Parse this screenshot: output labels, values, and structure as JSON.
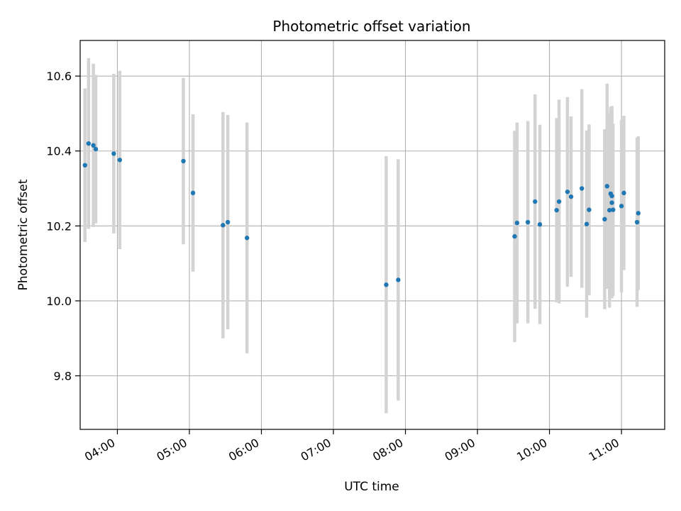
{
  "chart_data": {
    "type": "scatter",
    "title": "Photometric offset variation",
    "xlabel": "UTC time",
    "ylabel": "Photometric offset",
    "x_tick_labels": [
      "04:00",
      "05:00",
      "06:00",
      "07:00",
      "08:00",
      "09:00",
      "10:00",
      "11:00"
    ],
    "x_ticks": [
      "04:00",
      "05:00",
      "06:00",
      "07:00",
      "08:00",
      "09:00",
      "10:00",
      "11:00"
    ],
    "y_ticks": [
      9.8,
      10.0,
      10.2,
      10.4,
      10.6
    ],
    "y_tick_labels": [
      "9.8",
      "10.0",
      "10.2",
      "10.4",
      "10.6"
    ],
    "xlim": [
      "03:29",
      "11:36"
    ],
    "ylim": [
      9.657,
      10.695
    ],
    "grid": true,
    "marker_color": "#1f77b4",
    "errorbar_color": "#d3d3d3",
    "points": [
      {
        "x": "03:33",
        "y": 10.362,
        "err": 0.205
      },
      {
        "x": "03:36",
        "y": 10.42,
        "err": 0.228
      },
      {
        "x": "03:40",
        "y": 10.415,
        "err": 0.218
      },
      {
        "x": "03:42",
        "y": 10.405,
        "err": 0.198
      },
      {
        "x": "03:57",
        "y": 10.393,
        "err": 0.213
      },
      {
        "x": "04:02",
        "y": 10.376,
        "err": 0.238
      },
      {
        "x": "04:55",
        "y": 10.373,
        "err": 0.222
      },
      {
        "x": "05:03",
        "y": 10.288,
        "err": 0.21
      },
      {
        "x": "05:28",
        "y": 10.202,
        "err": 0.302
      },
      {
        "x": "05:32",
        "y": 10.21,
        "err": 0.286
      },
      {
        "x": "05:48",
        "y": 10.168,
        "err": 0.308
      },
      {
        "x": "07:44",
        "y": 10.043,
        "err": 0.343
      },
      {
        "x": "07:54",
        "y": 10.056,
        "err": 0.322
      },
      {
        "x": "09:31",
        "y": 10.172,
        "err": 0.282
      },
      {
        "x": "09:33",
        "y": 10.208,
        "err": 0.268
      },
      {
        "x": "09:42",
        "y": 10.21,
        "err": 0.27
      },
      {
        "x": "09:48",
        "y": 10.265,
        "err": 0.286
      },
      {
        "x": "09:52",
        "y": 10.204,
        "err": 0.266
      },
      {
        "x": "10:06",
        "y": 10.242,
        "err": 0.246
      },
      {
        "x": "10:08",
        "y": 10.265,
        "err": 0.272
      },
      {
        "x": "10:15",
        "y": 10.291,
        "err": 0.253
      },
      {
        "x": "10:18",
        "y": 10.278,
        "err": 0.214
      },
      {
        "x": "10:27",
        "y": 10.3,
        "err": 0.265
      },
      {
        "x": "10:31",
        "y": 10.205,
        "err": 0.25
      },
      {
        "x": "10:33",
        "y": 10.243,
        "err": 0.228
      },
      {
        "x": "10:46",
        "y": 10.218,
        "err": 0.24
      },
      {
        "x": "10:48",
        "y": 10.306,
        "err": 0.274
      },
      {
        "x": "10:50",
        "y": 10.242,
        "err": 0.26
      },
      {
        "x": "10:51",
        "y": 10.286,
        "err": 0.232
      },
      {
        "x": "10:52",
        "y": 10.262,
        "err": 0.255
      },
      {
        "x": "10:52",
        "y": 10.28,
        "err": 0.24
      },
      {
        "x": "10:53",
        "y": 10.243,
        "err": 0.23
      },
      {
        "x": "11:00",
        "y": 10.253,
        "err": 0.23
      },
      {
        "x": "11:02",
        "y": 10.288,
        "err": 0.206
      },
      {
        "x": "11:13",
        "y": 10.21,
        "err": 0.226
      },
      {
        "x": "11:14",
        "y": 10.234,
        "err": 0.205
      }
    ]
  }
}
